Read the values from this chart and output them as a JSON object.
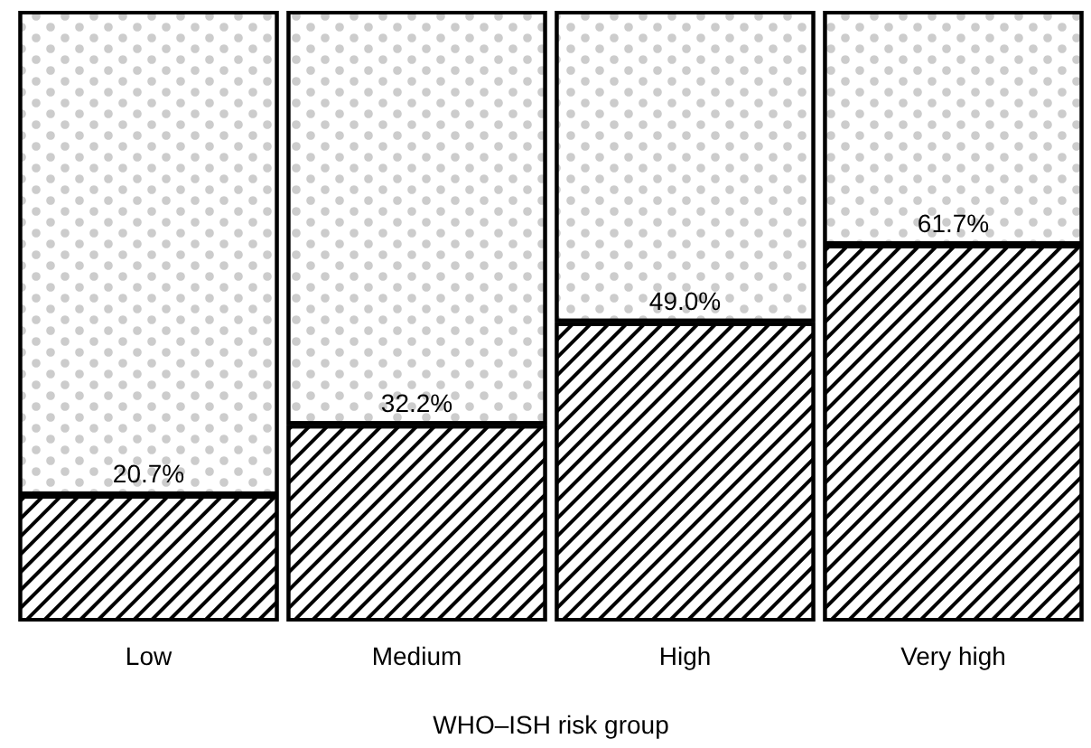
{
  "chart_data": {
    "type": "bar",
    "stacked": true,
    "xlabel": "WHO–ISH risk group",
    "tick_labels": "x",
    "categories": [
      "Low",
      "Medium",
      "High",
      "Very high"
    ],
    "series": [
      {
        "color": "#000000",
        "values": [
          20.7,
          32.2,
          49.0,
          61.7
        ],
        "value_labels": [
          "20.7%",
          "32.2%",
          "49.0%",
          "61.7%"
        ]
      },
      {
        "color": "#ffffff",
        "values": [
          79.3,
          67.8,
          51.0,
          38.3
        ]
      }
    ]
  }
}
